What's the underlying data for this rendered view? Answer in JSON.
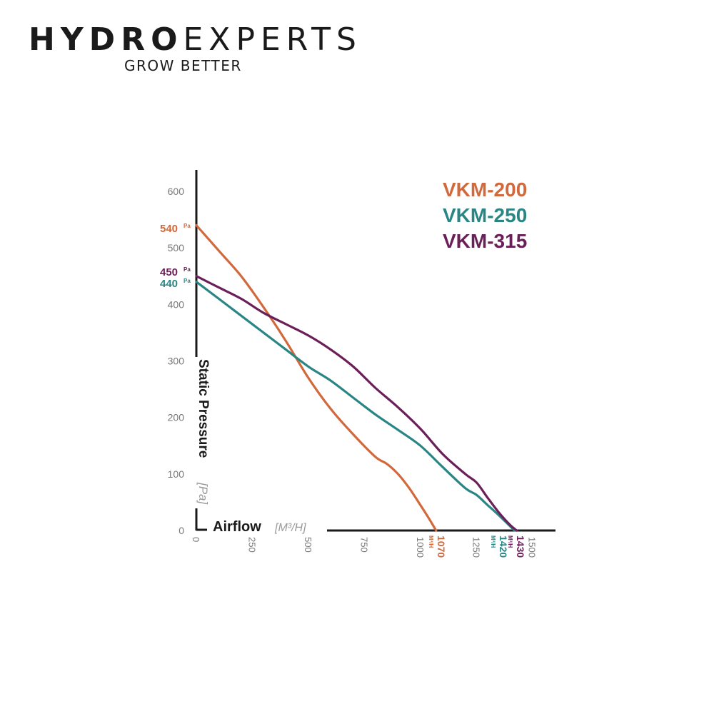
{
  "brand": {
    "name_part1": "HYDRO",
    "name_part2": "EXPERTS",
    "tagline": "GROW BETTER"
  },
  "chart_data": {
    "type": "line",
    "ylabel": "Static Pressure",
    "ylabel_unit": "[Pa]",
    "xlabel": "Airflow",
    "xlabel_unit": "[M³/H]",
    "xlim": [
      0,
      1600
    ],
    "ylim": [
      0,
      640
    ],
    "yticks": [
      0,
      100,
      200,
      300,
      400,
      500,
      600
    ],
    "xticks": [
      0,
      250,
      500,
      750,
      1000,
      1250,
      1500
    ],
    "grid": false,
    "legend_position": "top-right",
    "series": [
      {
        "name": "VKM-200",
        "color": "#d2693c",
        "max_pressure_label": "540",
        "max_airflow_label": "1070",
        "x": [
          0,
          100,
          200,
          300,
          400,
          500,
          600,
          700,
          800,
          850,
          900,
          950,
          1000,
          1040,
          1070
        ],
        "y": [
          540,
          495,
          450,
          395,
          335,
          270,
          215,
          170,
          130,
          118,
          100,
          75,
          45,
          20,
          0
        ]
      },
      {
        "name": "VKM-250",
        "color": "#2a8585",
        "max_pressure_label": "440",
        "max_airflow_label": "1420",
        "x": [
          0,
          100,
          200,
          300,
          400,
          500,
          600,
          700,
          800,
          900,
          1000,
          1100,
          1200,
          1250,
          1300,
          1350,
          1420
        ],
        "y": [
          440,
          410,
          380,
          350,
          320,
          290,
          265,
          235,
          205,
          178,
          150,
          112,
          75,
          63,
          45,
          27,
          0
        ]
      },
      {
        "name": "VKM-315",
        "color": "#6b1f59",
        "max_pressure_label": "450",
        "max_airflow_label": "1430",
        "x": [
          0,
          100,
          200,
          300,
          400,
          500,
          600,
          700,
          800,
          900,
          1000,
          1100,
          1200,
          1250,
          1300,
          1350,
          1400,
          1430
        ],
        "y": [
          450,
          430,
          410,
          385,
          365,
          345,
          320,
          290,
          252,
          218,
          180,
          135,
          100,
          85,
          58,
          32,
          10,
          0
        ]
      }
    ]
  },
  "units": {
    "pa": "Pa",
    "m3h": "M³/H"
  }
}
